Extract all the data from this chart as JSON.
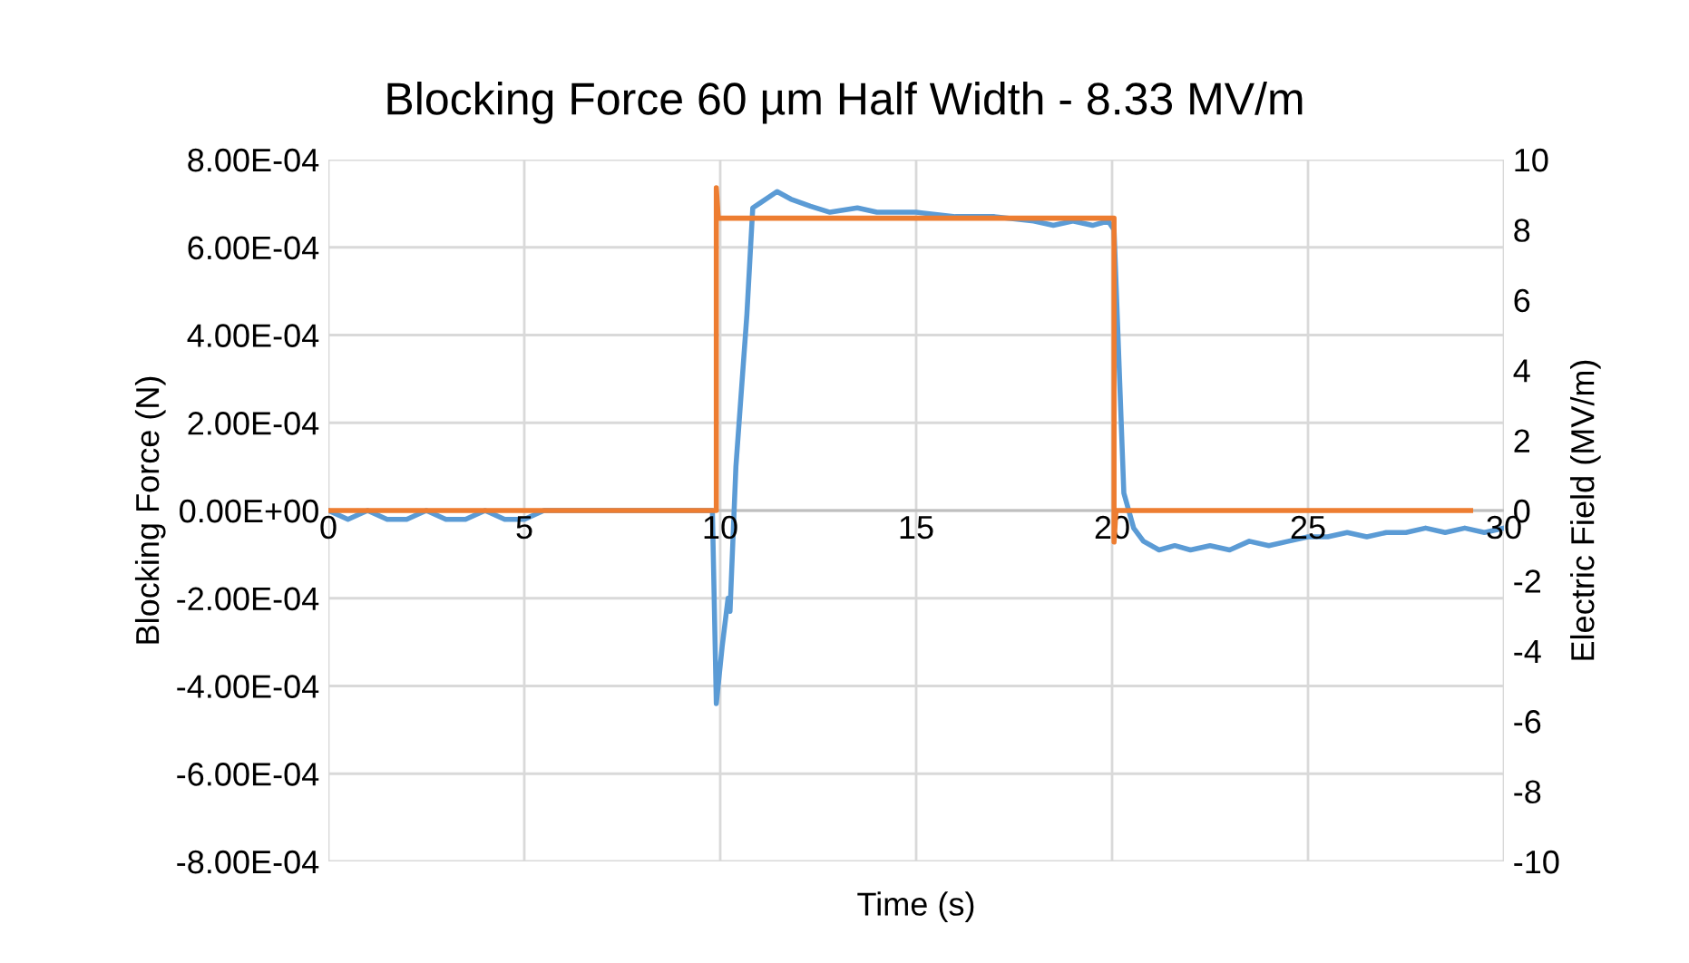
{
  "chart_data": {
    "type": "line",
    "title": "Blocking Force 60 µm Half Width - 8.33 MV/m",
    "xlabel": "Time (s)",
    "ylabel": "Blocking Force (N)",
    "y2label": "Electric Field (MV/m)",
    "xlim": [
      0,
      30
    ],
    "xticks": [
      0,
      5,
      10,
      15,
      20,
      25,
      30
    ],
    "ylim": [
      -0.0008,
      0.0008
    ],
    "yticks": [
      {
        "value": -0.0008,
        "label": "-8.00E-04"
      },
      {
        "value": -0.0006,
        "label": "-6.00E-04"
      },
      {
        "value": -0.0004,
        "label": "-4.00E-04"
      },
      {
        "value": -0.0002,
        "label": "-2.00E-04"
      },
      {
        "value": 0,
        "label": "0.00E+00"
      },
      {
        "value": 0.0002,
        "label": "2.00E-04"
      },
      {
        "value": 0.0004,
        "label": "4.00E-04"
      },
      {
        "value": 0.0006,
        "label": "6.00E-04"
      },
      {
        "value": 0.0008,
        "label": "8.00E-04"
      }
    ],
    "y2lim": [
      -10,
      10
    ],
    "y2ticks": [
      -10,
      -8,
      -6,
      -4,
      -2,
      0,
      2,
      4,
      6,
      8,
      10
    ],
    "grid": true,
    "marker": "none",
    "line_style": "solid",
    "series": [
      {
        "color": "#5b9bd5",
        "x": [
          0,
          0.5,
          1,
          1.5,
          2,
          2.5,
          3,
          3.5,
          4,
          4.5,
          5,
          5.5,
          6,
          6.5,
          7,
          7.5,
          8,
          8.5,
          9,
          9.5,
          9.8,
          9.9,
          10.05,
          10.2,
          10.25,
          10.4,
          10.68,
          10.83,
          11,
          11.45,
          11.8,
          12.3,
          12.8,
          13.5,
          14,
          15,
          16,
          17,
          18,
          18.5,
          19,
          19.5,
          19.9,
          20.05,
          20.3,
          20.55,
          20.8,
          21.2,
          21.6,
          22,
          22.5,
          23,
          23.5,
          24,
          24.5,
          25,
          25.5,
          26,
          26.5,
          27,
          27.5,
          28,
          28.5,
          29,
          29.5,
          30
        ],
        "values": [
          0,
          -2e-05,
          0,
          -2e-05,
          -2e-05,
          0,
          -2e-05,
          -2e-05,
          0,
          -2e-05,
          -2e-05,
          0,
          0,
          0,
          0,
          0,
          0,
          0,
          0,
          0,
          0,
          -0.00044,
          -0.00031,
          -0.0002,
          -0.00023,
          0.0001,
          0.000446,
          0.00069,
          0.0007,
          0.000727,
          0.00071,
          0.000694,
          0.00068,
          0.00069,
          0.00068,
          0.00068,
          0.00067,
          0.00067,
          0.00066,
          0.00065,
          0.00066,
          0.00065,
          0.00066,
          0.00064,
          4e-05,
          -4e-05,
          -7e-05,
          -9e-05,
          -8e-05,
          -9e-05,
          -8e-05,
          -9e-05,
          -7e-05,
          -8e-05,
          -7e-05,
          -6e-05,
          -6e-05,
          -5e-05,
          -6e-05,
          -5e-05,
          -5e-05,
          -4e-05,
          -5e-05,
          -4e-05,
          -5e-05,
          -4e-05
        ]
      },
      {
        "color": "#ed7d31",
        "axis": "y2",
        "x": [
          0,
          9.9,
          9.9,
          9.95,
          20.05,
          20.05,
          20.1,
          29.15
        ],
        "values": [
          0,
          0,
          9.2,
          8.33,
          8.33,
          -0.9,
          0,
          0
        ]
      }
    ]
  }
}
